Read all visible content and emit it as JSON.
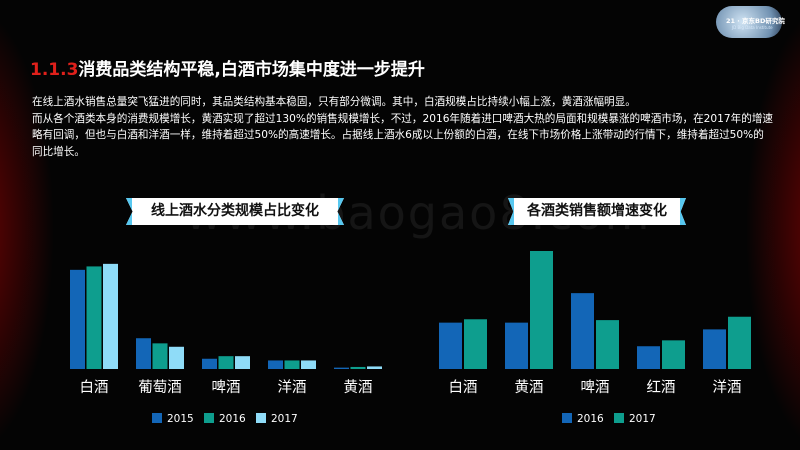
{
  "logo": {
    "line1": "21 · 京东BD研究院",
    "line2": "JD Big Data Institute"
  },
  "title": {
    "number": "1.1.3",
    "text": "消费品类结构平稳,白酒市场集中度进一步提升"
  },
  "paragraphs": [
    "在线上酒水销售总量突飞猛进的同时，其品类结构基本稳固，只有部分微调。其中，白酒规模占比持续小幅上涨，黄酒涨幅明显。",
    "而从各个酒类本身的消费规模增长，黄酒实现了超过130%的销售规模增长，不过，2016年随着进口啤酒大热的局面和规模暴涨的啤酒市场，在2017年的增速略有回调，但也与白酒和洋酒一样，维持着超过50%的高速增长。占据线上酒水6成以上份额的白酒，在线下市场价格上涨带动的行情下，维持着超过50%的同比增长。"
  ],
  "watermark": "www.baogao8.com",
  "colors": {
    "dark_blue": "#1366b7",
    "teal": "#0e9e8e",
    "light_blue": "#8fdcf8",
    "accent_red": "#e0201b",
    "banner_border": "#58c8f0"
  },
  "chart_data": [
    {
      "type": "bar",
      "title": "线上酒水分类规模占比变化",
      "categories": [
        "白酒",
        "葡萄酒",
        "啤酒",
        "洋酒",
        "黄酒"
      ],
      "series": [
        {
          "name": "2015",
          "color": "#1366b7",
          "values": [
            58,
            18,
            6,
            5,
            0.8
          ]
        },
        {
          "name": "2016",
          "color": "#0e9e8e",
          "values": [
            60,
            15,
            7.5,
            5,
            1.2
          ]
        },
        {
          "name": "2017",
          "color": "#8fdcf8",
          "values": [
            61.5,
            13,
            7.5,
            5,
            1.5
          ]
        }
      ],
      "ylim": [
        0,
        62
      ],
      "legend": "bottom"
    },
    {
      "type": "bar",
      "title": "各酒类销售额增速变化",
      "categories": [
        "白酒",
        "黄酒",
        "啤酒",
        "红酒",
        "洋酒"
      ],
      "series": [
        {
          "name": "2016",
          "color": "#1366b7",
          "values": [
            55,
            55,
            90,
            27,
            47
          ]
        },
        {
          "name": "2017",
          "color": "#0e9e8e",
          "values": [
            59,
            140,
            58,
            34,
            62
          ]
        }
      ],
      "ylim": [
        0,
        140
      ],
      "legend": "bottom"
    }
  ]
}
